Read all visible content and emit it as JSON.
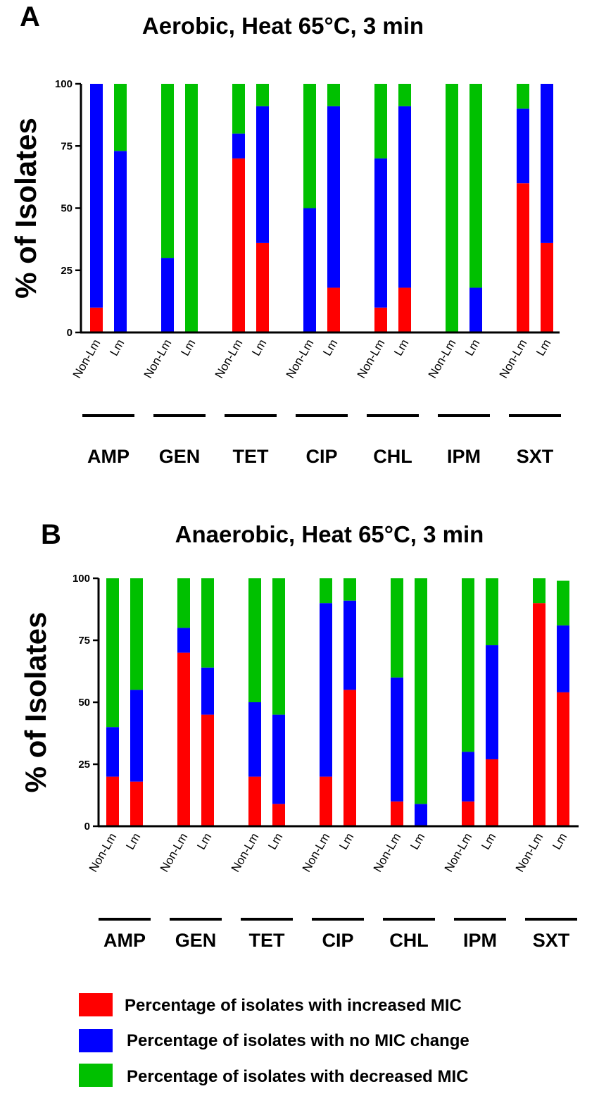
{
  "chart_data": [
    {
      "type": "bar",
      "stacked": true,
      "panel": "A",
      "title": "Aerobic, Heat 65°C, 3 min",
      "ylabel": "% of Isolates",
      "ylim": [
        0,
        100
      ],
      "yticks": [
        "0",
        "25",
        "50",
        "75",
        "100"
      ],
      "groups": [
        "AMP",
        "GEN",
        "TET",
        "CIP",
        "CHL",
        "IPM",
        "SXT"
      ],
      "categories": [
        "Non-Lm",
        "Lm"
      ],
      "series": [
        {
          "name": "Percentage of isolates with increased MIC",
          "color": "#ff0000",
          "values": [
            [
              10,
              0
            ],
            [
              0,
              0
            ],
            [
              70,
              36
            ],
            [
              0,
              18
            ],
            [
              10,
              18
            ],
            [
              0,
              0
            ],
            [
              60,
              36
            ]
          ]
        },
        {
          "name": "Percentage of isolates with no MIC change",
          "color": "#0000ff",
          "values": [
            [
              90,
              73
            ],
            [
              30,
              0
            ],
            [
              10,
              55
            ],
            [
              50,
              73
            ],
            [
              60,
              73
            ],
            [
              0,
              18
            ],
            [
              30,
              64
            ]
          ]
        },
        {
          "name": "Percentage of isolates with decreased MIC",
          "color": "#00c000",
          "values": [
            [
              0,
              27
            ],
            [
              70,
              100
            ],
            [
              20,
              9
            ],
            [
              50,
              9
            ],
            [
              30,
              9
            ],
            [
              100,
              82
            ],
            [
              10,
              0
            ]
          ]
        }
      ]
    },
    {
      "type": "bar",
      "stacked": true,
      "panel": "B",
      "title": "Anaerobic, Heat 65°C, 3 min",
      "ylabel": "% of Isolates",
      "ylim": [
        0,
        100
      ],
      "yticks": [
        "0",
        "25",
        "50",
        "75",
        "100"
      ],
      "groups": [
        "AMP",
        "GEN",
        "TET",
        "CIP",
        "CHL",
        "IPM",
        "SXT"
      ],
      "categories": [
        "Non-Lm",
        "Lm"
      ],
      "series": [
        {
          "name": "Percentage of isolates with increased MIC",
          "color": "#ff0000",
          "values": [
            [
              20,
              18
            ],
            [
              70,
              45
            ],
            [
              20,
              9
            ],
            [
              20,
              55
            ],
            [
              10,
              0
            ],
            [
              10,
              27
            ],
            [
              90,
              54
            ]
          ]
        },
        {
          "name": "Percentage of isolates with no MIC change",
          "color": "#0000ff",
          "values": [
            [
              20,
              37
            ],
            [
              10,
              19
            ],
            [
              30,
              36
            ],
            [
              70,
              36
            ],
            [
              50,
              9
            ],
            [
              20,
              46
            ],
            [
              0,
              27
            ]
          ]
        },
        {
          "name": "Percentage of isolates with decreased MIC",
          "color": "#00c000",
          "values": [
            [
              60,
              45
            ],
            [
              20,
              36
            ],
            [
              50,
              55
            ],
            [
              10,
              9
            ],
            [
              40,
              91
            ],
            [
              70,
              27
            ],
            [
              10,
              18
            ]
          ]
        }
      ]
    }
  ],
  "legend": [
    {
      "label": "Percentage of isolates with increased MIC",
      "color": "#ff0000"
    },
    {
      "label": "Percentage of isolates with no MIC change",
      "color": "#0000ff"
    },
    {
      "label": "Percentage of isolates with decreased MIC",
      "color": "#00c000"
    }
  ]
}
